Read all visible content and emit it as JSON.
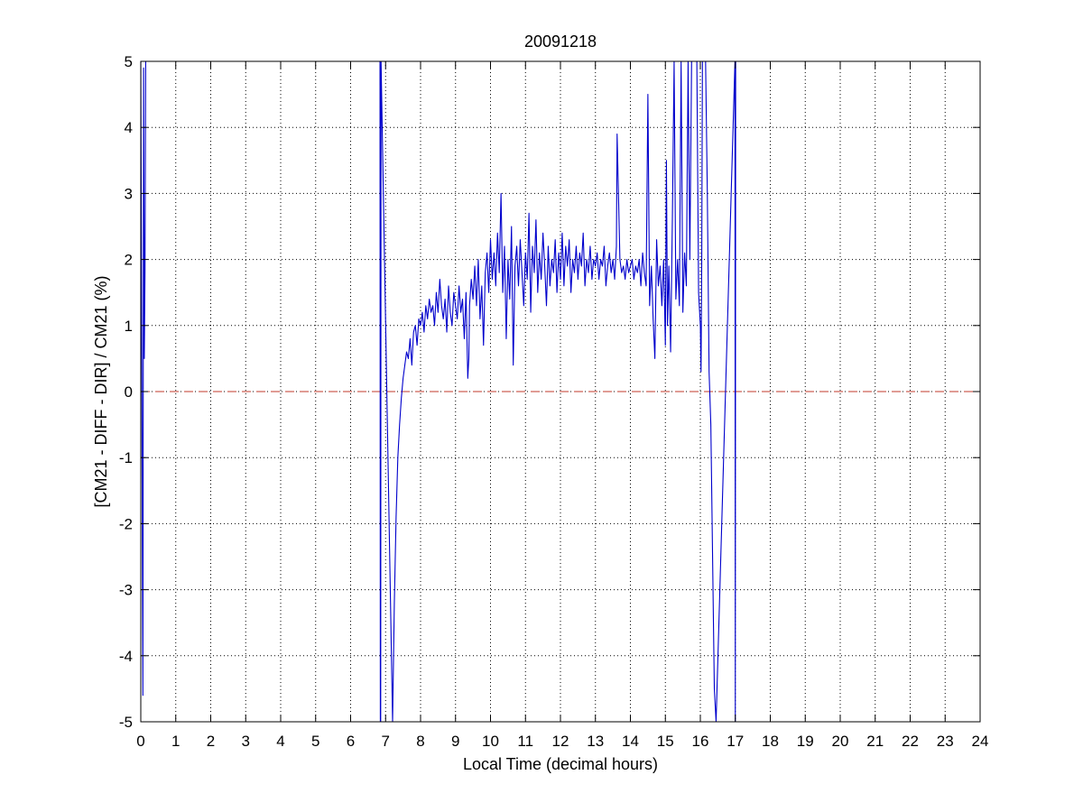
{
  "chart_data": {
    "type": "line",
    "title": "20091218",
    "xlabel": "Local Time (decimal hours)",
    "ylabel": "[CM21 - DIFF - DIR] / CM21 (%)",
    "xlim": [
      0,
      24
    ],
    "ylim": [
      -5,
      5
    ],
    "xticks": [
      "0",
      "1",
      "2",
      "3",
      "4",
      "5",
      "6",
      "7",
      "8",
      "9",
      "10",
      "11",
      "12",
      "13",
      "14",
      "15",
      "16",
      "17",
      "18",
      "19",
      "20",
      "21",
      "22",
      "23",
      "24"
    ],
    "yticks": [
      "5",
      "4",
      "3",
      "2",
      "1",
      "0",
      "-1",
      "-2",
      "-3",
      "-4",
      "-5"
    ],
    "grid": true,
    "reference_line": {
      "y": 0,
      "style": "dashed",
      "color": "#c0392b"
    },
    "series": [
      {
        "color": "#0000cc",
        "x": [
          0.0,
          0.03,
          0.06,
          0.08,
          0.1,
          0.12,
          0.14,
          6.84,
          6.85,
          6.86,
          6.87,
          7.2,
          7.25,
          7.3,
          7.35,
          7.4,
          7.45,
          7.5,
          7.55,
          7.6,
          7.65,
          7.7,
          7.75,
          7.8,
          7.85,
          7.9,
          7.95,
          8.0,
          8.05,
          8.1,
          8.15,
          8.2,
          8.25,
          8.3,
          8.35,
          8.4,
          8.45,
          8.5,
          8.55,
          8.6,
          8.65,
          8.7,
          8.75,
          8.8,
          8.85,
          8.9,
          8.95,
          9.0,
          9.05,
          9.1,
          9.15,
          9.2,
          9.25,
          9.3,
          9.35,
          9.38,
          9.4,
          9.45,
          9.5,
          9.55,
          9.6,
          9.65,
          9.7,
          9.75,
          9.8,
          9.85,
          9.9,
          9.95,
          10.0,
          10.05,
          10.1,
          10.15,
          10.2,
          10.25,
          10.3,
          10.35,
          10.4,
          10.45,
          10.5,
          10.55,
          10.6,
          10.65,
          10.7,
          10.75,
          10.8,
          10.85,
          10.9,
          10.95,
          11.0,
          11.05,
          11.1,
          11.15,
          11.2,
          11.25,
          11.3,
          11.35,
          11.4,
          11.45,
          11.5,
          11.55,
          11.6,
          11.65,
          11.7,
          11.75,
          11.8,
          11.85,
          11.9,
          11.95,
          12.0,
          12.05,
          12.1,
          12.15,
          12.2,
          12.25,
          12.3,
          12.35,
          12.4,
          12.45,
          12.5,
          12.55,
          12.6,
          12.65,
          12.7,
          12.75,
          12.8,
          12.85,
          12.9,
          12.95,
          13.0,
          13.05,
          13.1,
          13.15,
          13.2,
          13.25,
          13.3,
          13.35,
          13.4,
          13.45,
          13.5,
          13.55,
          13.6,
          13.62,
          13.65,
          13.7,
          13.75,
          13.8,
          13.85,
          13.9,
          13.95,
          14.0,
          14.05,
          14.1,
          14.15,
          14.2,
          14.25,
          14.3,
          14.35,
          14.4,
          14.45,
          14.5,
          14.55,
          14.6,
          14.65,
          14.7,
          14.75,
          14.8,
          14.85,
          14.9,
          14.95,
          15.0,
          15.03,
          15.06,
          15.1,
          15.15,
          15.2,
          15.25,
          15.3,
          15.35,
          15.4,
          15.45,
          15.5,
          15.55,
          15.6,
          15.65,
          15.7,
          15.75,
          15.8,
          15.85,
          15.9,
          15.95,
          16.0,
          16.02,
          16.04,
          16.06,
          16.08,
          16.1,
          16.15,
          16.2,
          16.25,
          16.3,
          16.35,
          16.4,
          16.45,
          16.99,
          17.0,
          17.01
        ],
        "y": [
          5.0,
          0.2,
          -4.6,
          4.9,
          0.5,
          1.8,
          5.0,
          5.0,
          -5.0,
          -5.0,
          5.0,
          -5.0,
          -3.2,
          -1.9,
          -1.0,
          -0.5,
          -0.1,
          0.2,
          0.4,
          0.6,
          0.5,
          0.8,
          0.4,
          0.9,
          1.0,
          0.7,
          1.1,
          1.0,
          1.2,
          0.9,
          1.3,
          1.1,
          1.4,
          1.2,
          1.3,
          1.0,
          1.5,
          1.2,
          1.7,
          1.3,
          1.1,
          1.4,
          0.9,
          1.6,
          1.2,
          1.0,
          1.5,
          1.3,
          1.1,
          1.6,
          1.2,
          1.4,
          0.8,
          1.5,
          0.2,
          0.5,
          1.3,
          1.7,
          1.4,
          1.9,
          1.3,
          2.0,
          1.1,
          1.6,
          0.7,
          1.8,
          2.1,
          1.5,
          2.3,
          1.7,
          2.1,
          1.6,
          2.4,
          1.8,
          3.0,
          1.5,
          2.2,
          0.8,
          2.0,
          1.4,
          2.5,
          0.4,
          1.9,
          2.2,
          1.6,
          2.3,
          1.8,
          1.3,
          2.1,
          1.7,
          2.7,
          1.2,
          2.2,
          1.8,
          2.6,
          1.5,
          2.1,
          1.7,
          2.4,
          1.9,
          1.3,
          2.2,
          1.6,
          2.0,
          1.8,
          2.3,
          1.5,
          2.1,
          1.7,
          2.4,
          1.6,
          2.2,
          1.9,
          2.3,
          1.5,
          2.0,
          1.8,
          2.2,
          1.7,
          2.1,
          1.9,
          2.4,
          1.6,
          2.0,
          1.8,
          2.2,
          1.7,
          2.0,
          1.9,
          2.1,
          1.7,
          2.0,
          1.9,
          2.2,
          1.6,
          1.9,
          2.1,
          1.8,
          2.0,
          1.7,
          2.2,
          3.9,
          3.2,
          2.0,
          1.8,
          1.9,
          1.7,
          2.0,
          1.8,
          1.9,
          2.0,
          1.7,
          1.9,
          1.8,
          2.0,
          1.6,
          2.1,
          1.8,
          1.6,
          4.5,
          1.3,
          1.9,
          1.1,
          0.5,
          2.3,
          1.6,
          1.9,
          1.3,
          2.0,
          0.7,
          3.5,
          1.0,
          1.9,
          0.6,
          2.6,
          5.0,
          1.4,
          2.0,
          1.3,
          5.0,
          1.2,
          2.1,
          1.6,
          5.0,
          2.0,
          5.0,
          5.0,
          5.0,
          5.0,
          1.5,
          1.0,
          0.3,
          2.0,
          5.0,
          5.0,
          5.0,
          5.0,
          3.0,
          0.3,
          -0.5,
          -2.5,
          -4.5,
          -5.0,
          5.0,
          -5.0,
          5.0
        ]
      }
    ]
  }
}
